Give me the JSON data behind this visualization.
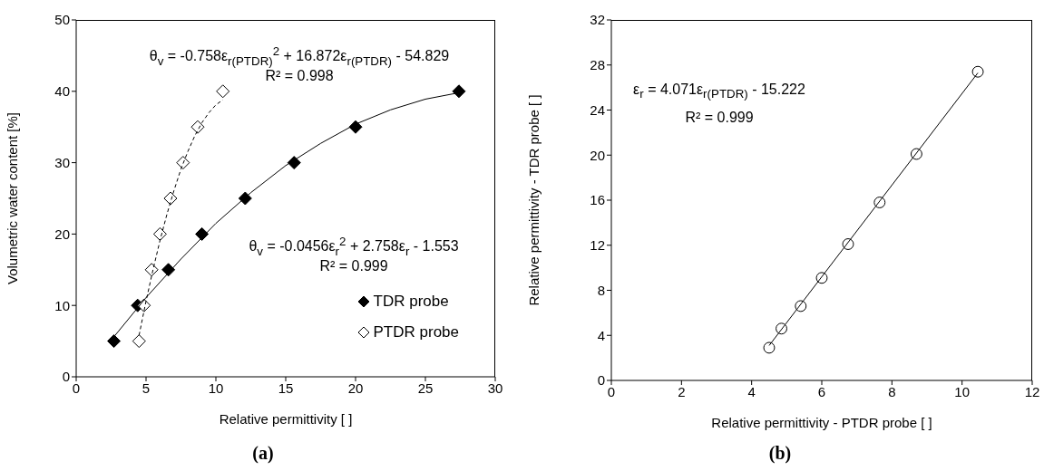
{
  "chart_data": [
    {
      "type": "scatter",
      "xlabel": "Relative  permittivity  [ ]",
      "ylabel": "Volumetric water content [%]",
      "xlim": [
        0,
        30
      ],
      "xticks": [
        0,
        5,
        10,
        15,
        20,
        25,
        30
      ],
      "ylim": [
        0,
        50
      ],
      "yticks": [
        0,
        10,
        20,
        30,
        40,
        50
      ],
      "grid": false,
      "legend": "bottom right",
      "series": [
        {
          "name": "TDR probe",
          "type": "scatter",
          "marker": "diamond",
          "color": "#000000",
          "x": [
            2.7,
            4.4,
            6.6,
            9.0,
            12.1,
            15.6,
            20.0,
            27.4
          ],
          "values": [
            5,
            10,
            15,
            20,
            25,
            30,
            35,
            40
          ]
        },
        {
          "name": "PTDR probe",
          "type": "scatter",
          "marker": "diamond",
          "color": "#ffffff",
          "x": [
            4.5,
            4.85,
            5.4,
            6.0,
            6.75,
            7.65,
            8.7,
            10.5
          ],
          "values": [
            5,
            10,
            15,
            20,
            25,
            30,
            35,
            40
          ]
        },
        {
          "type": "line",
          "line_style": "solid",
          "color": "#000000",
          "x": [
            2.7,
            5,
            7.5,
            10,
            12.5,
            15,
            17.5,
            20,
            22.5,
            25,
            27.4
          ],
          "values": [
            5.6,
            11.1,
            16.5,
            21.5,
            25.8,
            29.6,
            32.7,
            35.4,
            37.4,
            38.9,
            39.8
          ]
        },
        {
          "type": "line",
          "line_style": "dashed",
          "color": "#000000",
          "x": [
            4.5,
            5,
            5.5,
            6,
            6.5,
            7,
            7.5,
            8,
            8.5,
            9,
            9.5,
            10,
            10.5
          ],
          "values": [
            5.8,
            10.6,
            15.0,
            19.1,
            22.8,
            26.1,
            29.1,
            31.6,
            33.8,
            35.6,
            37.0,
            38.1,
            38.8
          ]
        }
      ],
      "annotations": [
        "θ$_{v}$ = -0.758ε$_{r(PTDR)}$$^{2}$ + 16.872ε$_{r(PTDR)}$ - 54.829",
        "R² = 0.998",
        "θ$_{v}$ = -0.0456ε$_{r}$$^{2}$ + 2.758ε$_{r}$ - 1.553",
        "R² = 0.999",
        "(a)"
      ]
    },
    {
      "type": "scatter",
      "xlabel": "Relative  permittivity  - PTDR probe [ ]",
      "ylabel": "Relative  permittivity  - TDR probe [ ]",
      "xlim": [
        0,
        12
      ],
      "xticks": [
        0,
        2,
        4,
        6,
        8,
        10,
        12
      ],
      "ylim": [
        0,
        32
      ],
      "yticks": [
        0,
        4,
        8,
        12,
        16,
        20,
        24,
        28,
        32
      ],
      "grid": false,
      "legend": false,
      "series": [
        {
          "type": "scatter",
          "marker": "circle",
          "color": "#ffffff",
          "x": [
            4.5,
            4.85,
            5.4,
            6.0,
            6.75,
            7.65,
            8.7,
            10.45
          ],
          "values": [
            2.9,
            4.6,
            6.6,
            9.1,
            12.1,
            15.8,
            20.1,
            27.4
          ]
        },
        {
          "type": "line",
          "line_style": "solid",
          "color": "#000000",
          "x": [
            4.5,
            10.45
          ],
          "values": [
            3.1,
            27.3
          ]
        }
      ],
      "annotations": [
        "ε$_{r}$ = 4.071ε$_{r(PTDR)}$ - 15.222",
        "R² = 0.999",
        "(b)"
      ]
    }
  ]
}
